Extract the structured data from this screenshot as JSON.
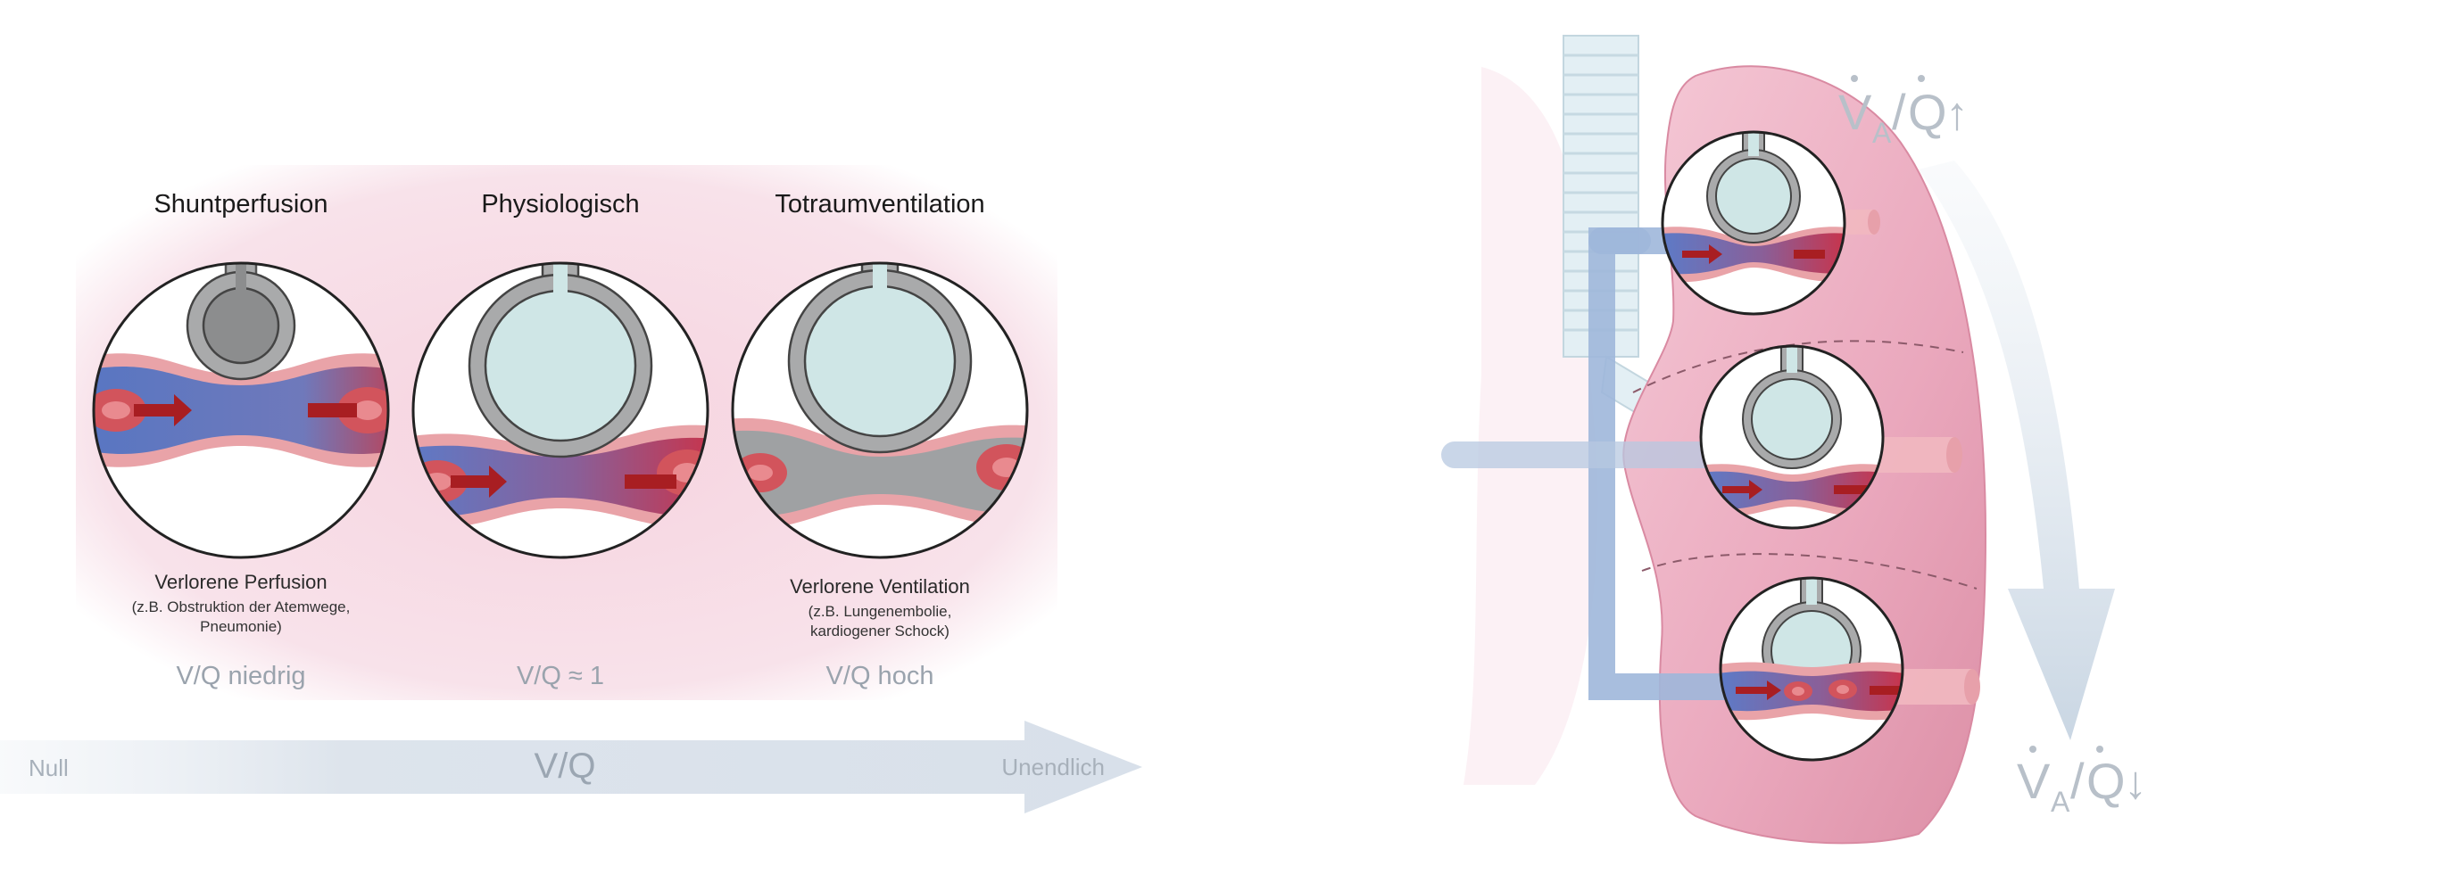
{
  "colors": {
    "pink_bg": "#f7dde6",
    "vessel_blue": "#5b7fc4",
    "vessel_pink": "#e9a3a8",
    "vessel_red": "#c23a3a",
    "arrow_red": "#a81e22",
    "alveolus_gray": "#a9aaab",
    "alveolus_fill": "#cfe6e6",
    "lung_pink": "#ecabc0",
    "trachea": "#dbe9ef",
    "scale_gray": "#b5bec8",
    "text_dark": "#1a1a1a",
    "text_gray": "#9aa3ad"
  },
  "left": {
    "panels": [
      {
        "title": "Shuntperfusion",
        "caption_main": "Verlorene Perfusion",
        "caption_sub1": "(z.B. Obstruktion der Atemwege,",
        "caption_sub2": "Pneumonie)",
        "ratio": "V/Q niedrig"
      },
      {
        "title": "Physiologisch",
        "caption_main": "",
        "caption_sub1": "",
        "caption_sub2": "",
        "ratio": "V/Q ≈ 1"
      },
      {
        "title": "Totraumventilation",
        "caption_main": "Verlorene Ventilation",
        "caption_sub1": "(z.B. Lungenembolie,",
        "caption_sub2": "kardiogener Schock)",
        "ratio": "V/Q hoch"
      }
    ],
    "scale": {
      "left_label": "Null",
      "center_label": "V/Q",
      "right_label": "Unendlich"
    }
  },
  "right": {
    "top_label": {
      "v": "V",
      "sub": "A",
      "slash": "/",
      "q": "Q",
      "arrow": "↑"
    },
    "bottom_label": {
      "v": "V",
      "sub": "A",
      "slash": "/",
      "q": "Q",
      "arrow": "↓"
    }
  }
}
